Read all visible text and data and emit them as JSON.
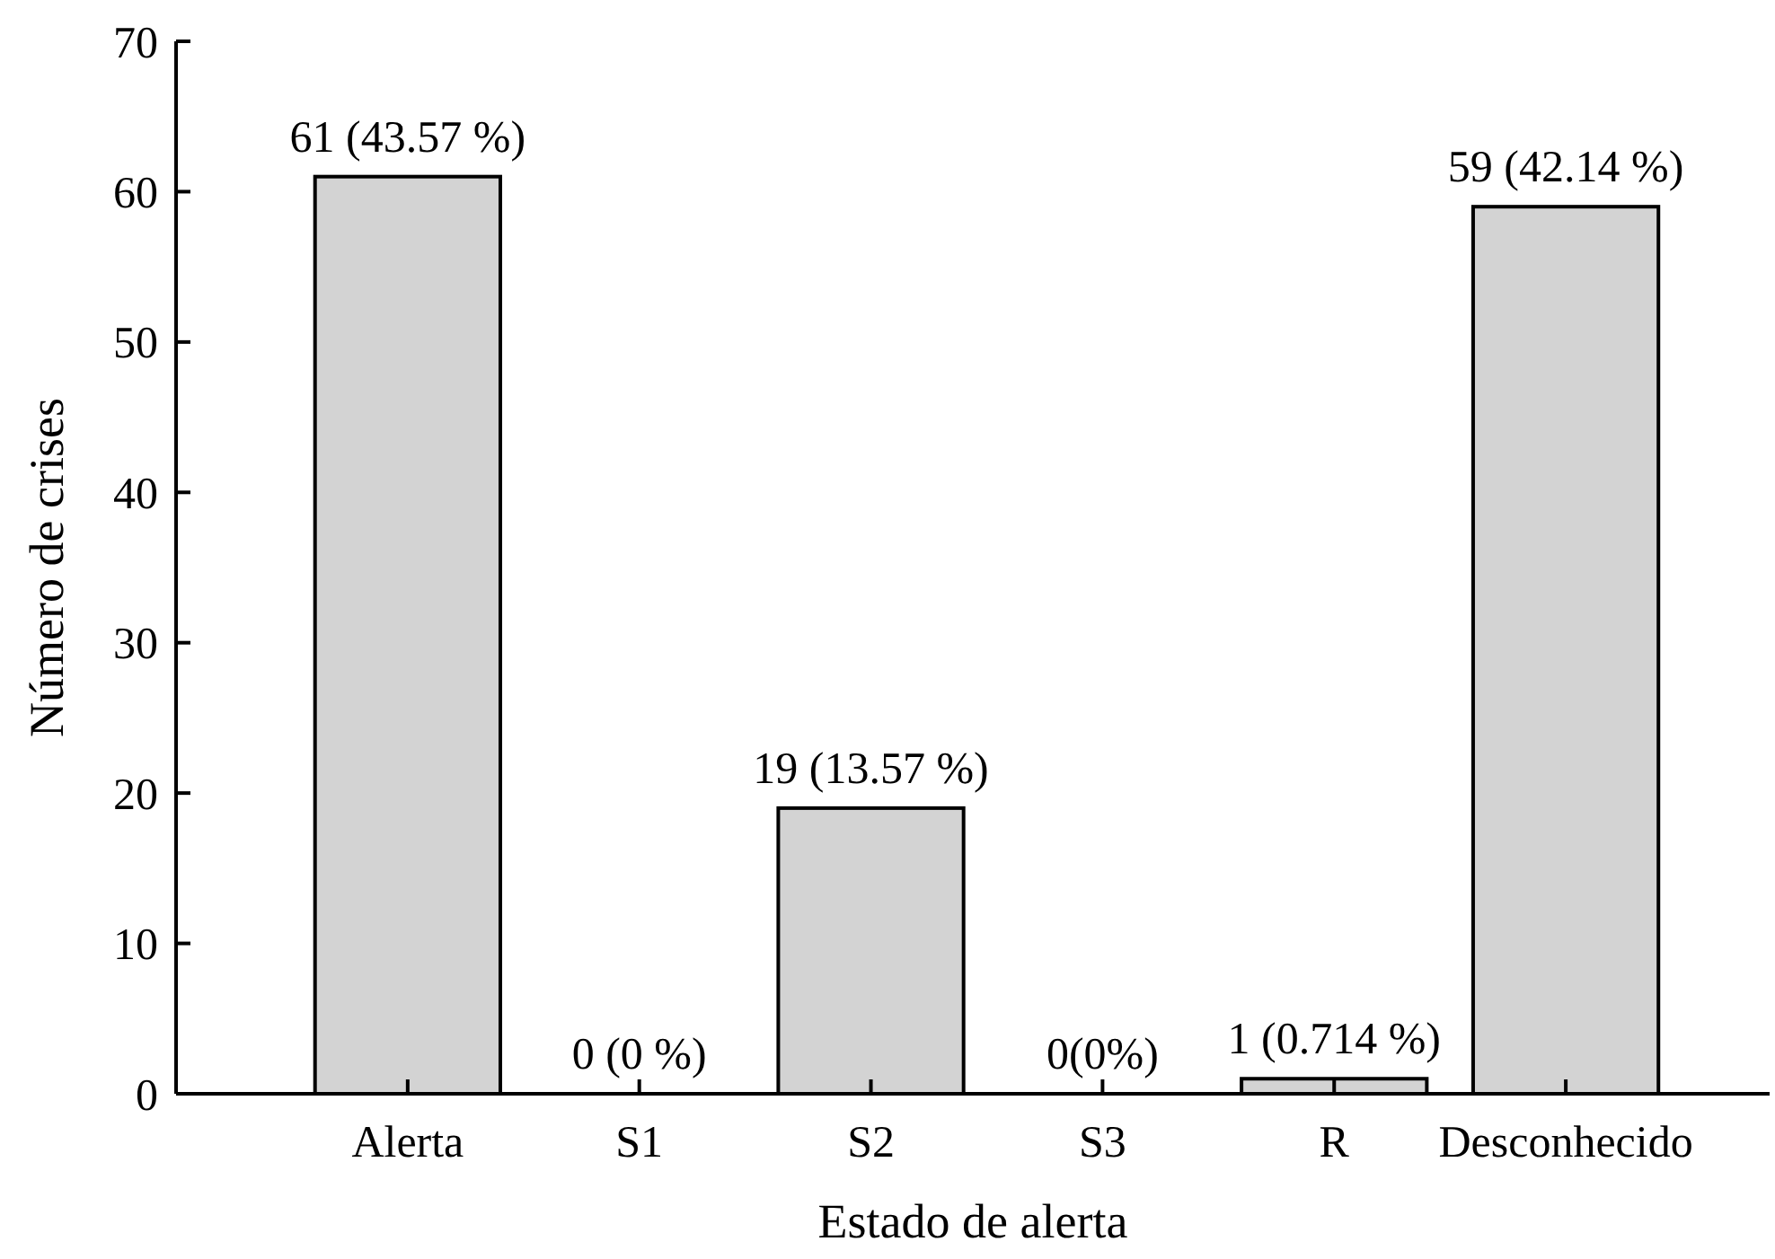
{
  "chart_data": {
    "type": "bar",
    "xlabel": "Estado de alerta",
    "ylabel": "Número de crises",
    "categories": [
      "Alerta",
      "S1",
      "S2",
      "S3",
      "R",
      "Desconhecido"
    ],
    "values": [
      61,
      0,
      19,
      0,
      1,
      59
    ],
    "value_labels": [
      "61 (43.57 %)",
      "0 (0 %)",
      "19 (13.57 %)",
      "0(0%)",
      "1 (0.714 %)",
      "59 (42.14 %)"
    ],
    "color": "#d3d3d3",
    "ylim": [
      0,
      70
    ],
    "yticks": [
      0,
      10,
      20,
      30,
      40,
      50,
      60,
      70
    ],
    "grid": false
  }
}
